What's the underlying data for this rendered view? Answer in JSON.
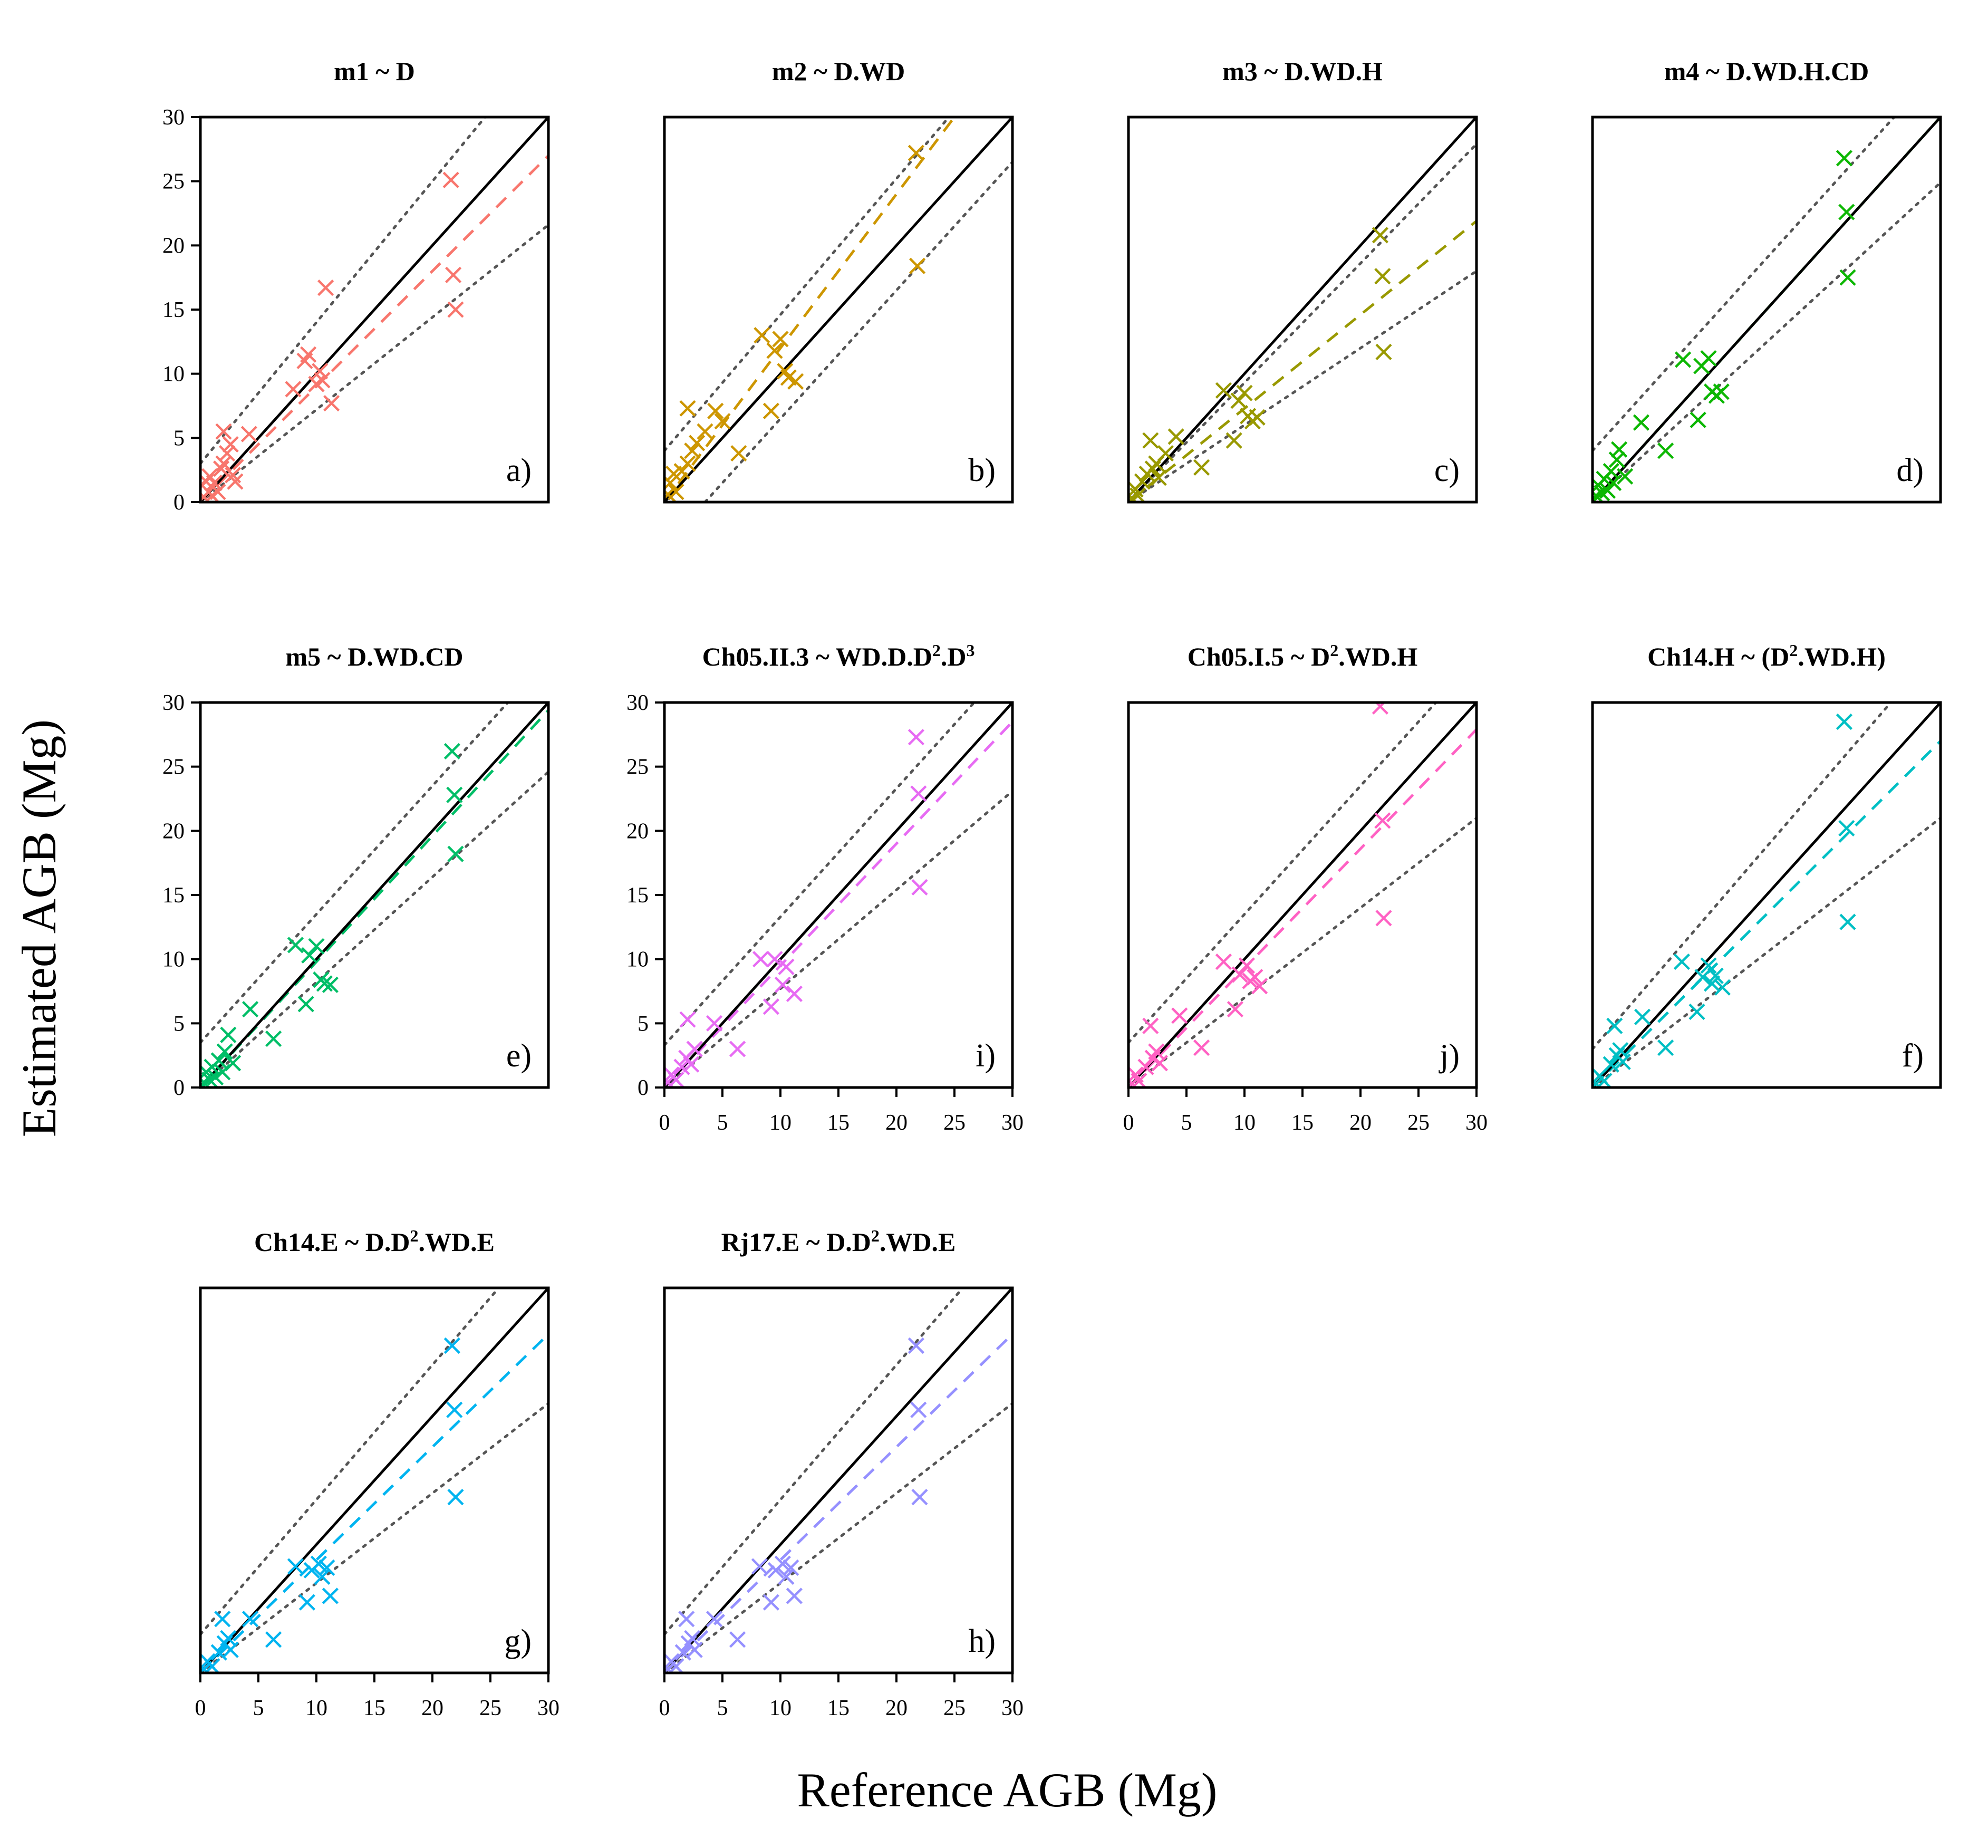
{
  "figure": {
    "ylabel": "Estimated AGB (Mg)",
    "xlabel": "Reference AGB (Mg)"
  },
  "chart_data": [
    {
      "type": "scatter",
      "id": "m1",
      "title": "m1 ~ D",
      "panel_label": "a)",
      "color": "#F8766D",
      "xlim": [
        0,
        30
      ],
      "ylim": [
        0,
        30
      ],
      "show_x_ticks": false,
      "show_y_ticks": true,
      "reference_line": {
        "slope": 1,
        "intercept": 0
      },
      "fit_line": {
        "slope": 0.9,
        "intercept": 0
      },
      "interval_lines": [
        {
          "slope": 1.1,
          "intercept": 3
        },
        {
          "slope": 0.72,
          "intercept": 0
        }
      ],
      "points": [
        [
          0.3,
          0.4
        ],
        [
          0.5,
          1.6
        ],
        [
          0.7,
          0.8
        ],
        [
          0.8,
          2.0
        ],
        [
          1.0,
          0.5
        ],
        [
          1.2,
          1.5
        ],
        [
          1.5,
          0.8
        ],
        [
          1.8,
          2.6
        ],
        [
          2.0,
          3.0
        ],
        [
          2.0,
          5.5
        ],
        [
          2.3,
          3.8
        ],
        [
          2.6,
          4.5
        ],
        [
          2.8,
          2.1
        ],
        [
          3.0,
          1.6
        ],
        [
          4.2,
          5.3
        ],
        [
          8.0,
          8.8
        ],
        [
          9.0,
          11.0
        ],
        [
          9.3,
          11.5
        ],
        [
          10.0,
          9.2
        ],
        [
          10.3,
          10.2
        ],
        [
          10.5,
          9.5
        ],
        [
          10.8,
          16.7
        ],
        [
          11.3,
          7.7
        ],
        [
          21.6,
          25.1
        ],
        [
          21.8,
          17.7
        ],
        [
          22.0,
          15.0
        ]
      ]
    },
    {
      "type": "scatter",
      "id": "m2",
      "title": "m2 ~ D.WD",
      "panel_label": "b)",
      "color": "#CD9600",
      "xlim": [
        0,
        30
      ],
      "ylim": [
        0,
        30
      ],
      "show_x_ticks": false,
      "show_y_ticks": false,
      "reference_line": {
        "slope": 1,
        "intercept": 0
      },
      "fit_line": {
        "slope": 1.2,
        "intercept": 0
      },
      "interval_lines": [
        {
          "slope": 1.06,
          "intercept": 4
        },
        {
          "slope": 1.0,
          "intercept": -3.5
        }
      ],
      "points": [
        [
          0.3,
          0.6
        ],
        [
          0.5,
          1.5
        ],
        [
          0.8,
          2.2
        ],
        [
          1.0,
          0.8
        ],
        [
          1.5,
          2.4
        ],
        [
          2.0,
          3.0
        ],
        [
          2.0,
          7.3
        ],
        [
          2.4,
          4.0
        ],
        [
          2.8,
          4.6
        ],
        [
          3.5,
          5.5
        ],
        [
          4.4,
          7.1
        ],
        [
          5.0,
          6.3
        ],
        [
          6.4,
          3.8
        ],
        [
          8.4,
          13.0
        ],
        [
          9.2,
          7.1
        ],
        [
          9.5,
          11.8
        ],
        [
          10.0,
          12.7
        ],
        [
          10.4,
          10.2
        ],
        [
          10.7,
          9.7
        ],
        [
          11.3,
          9.4
        ],
        [
          21.7,
          27.2
        ],
        [
          21.8,
          18.4
        ]
      ]
    },
    {
      "type": "scatter",
      "id": "m3",
      "title": "m3 ~ D.WD.H",
      "panel_label": "c)",
      "color": "#999900",
      "xlim": [
        0,
        30
      ],
      "ylim": [
        0,
        30
      ],
      "show_x_ticks": false,
      "show_y_ticks": false,
      "reference_line": {
        "slope": 1,
        "intercept": 0
      },
      "fit_line": {
        "slope": 0.73,
        "intercept": 0
      },
      "interval_lines": [
        {
          "slope": 0.93,
          "intercept": 0
        },
        {
          "slope": 0.6,
          "intercept": 0
        }
      ],
      "points": [
        [
          0.3,
          0.3
        ],
        [
          0.6,
          1.0
        ],
        [
          0.8,
          0.5
        ],
        [
          1.2,
          1.6
        ],
        [
          1.6,
          2.2
        ],
        [
          1.9,
          4.8
        ],
        [
          2.1,
          2.6
        ],
        [
          2.4,
          3.0
        ],
        [
          2.6,
          1.9
        ],
        [
          3.2,
          3.8
        ],
        [
          4.1,
          5.1
        ],
        [
          6.3,
          2.7
        ],
        [
          8.2,
          8.7
        ],
        [
          9.1,
          4.8
        ],
        [
          9.5,
          7.9
        ],
        [
          10.0,
          8.5
        ],
        [
          10.3,
          6.7
        ],
        [
          10.7,
          6.3
        ],
        [
          11.1,
          6.6
        ],
        [
          21.7,
          20.8
        ],
        [
          21.9,
          17.6
        ],
        [
          22.0,
          11.7
        ]
      ]
    },
    {
      "type": "scatter",
      "id": "m4",
      "title": "m4 ~ D.WD.H.CD",
      "panel_label": "d)",
      "color": "#0CB702",
      "xlim": [
        0,
        30
      ],
      "ylim": [
        0,
        30
      ],
      "show_x_ticks": false,
      "show_y_ticks": false,
      "reference_line": {
        "slope": 1,
        "intercept": 0
      },
      "fit_line": {
        "slope": 1.0,
        "intercept": 0
      },
      "interval_lines": [
        {
          "slope": 1.0,
          "intercept": 4
        },
        {
          "slope": 0.83,
          "intercept": 0
        }
      ],
      "points": [
        [
          0.3,
          0.5
        ],
        [
          0.5,
          1.3
        ],
        [
          0.8,
          0.7
        ],
        [
          1.0,
          1.8
        ],
        [
          1.3,
          0.9
        ],
        [
          1.6,
          2.4
        ],
        [
          1.8,
          1.5
        ],
        [
          2.1,
          3.3
        ],
        [
          2.3,
          4.1
        ],
        [
          2.8,
          2.0
        ],
        [
          4.2,
          6.2
        ],
        [
          6.3,
          4.0
        ],
        [
          7.8,
          11.1
        ],
        [
          9.1,
          6.4
        ],
        [
          9.4,
          10.6
        ],
        [
          10.0,
          11.2
        ],
        [
          10.3,
          8.6
        ],
        [
          10.7,
          8.3
        ],
        [
          11.1,
          8.6
        ],
        [
          21.7,
          26.8
        ],
        [
          21.9,
          22.6
        ],
        [
          22.0,
          17.5
        ]
      ]
    },
    {
      "type": "scatter",
      "id": "m5",
      "title": "m5 ~ D.WD.CD",
      "panel_label": "e)",
      "color": "#00BE67",
      "xlim": [
        0,
        30
      ],
      "ylim": [
        0,
        30
      ],
      "show_x_ticks": false,
      "show_y_ticks": true,
      "reference_line": {
        "slope": 1,
        "intercept": 0
      },
      "fit_line": {
        "slope": 0.98,
        "intercept": 0
      },
      "interval_lines": [
        {
          "slope": 1.0,
          "intercept": 3.5
        },
        {
          "slope": 0.82,
          "intercept": 0
        }
      ],
      "points": [
        [
          0.3,
          0.4
        ],
        [
          0.5,
          1.2
        ],
        [
          0.8,
          0.6
        ],
        [
          1.0,
          1.6
        ],
        [
          1.3,
          0.8
        ],
        [
          1.6,
          2.1
        ],
        [
          1.9,
          1.2
        ],
        [
          2.1,
          2.8
        ],
        [
          2.4,
          4.1
        ],
        [
          2.8,
          1.9
        ],
        [
          4.3,
          6.1
        ],
        [
          6.3,
          3.8
        ],
        [
          8.2,
          11.1
        ],
        [
          9.1,
          6.5
        ],
        [
          9.4,
          10.3
        ],
        [
          10.0,
          11.0
        ],
        [
          10.4,
          8.4
        ],
        [
          10.7,
          8.1
        ],
        [
          11.2,
          8.0
        ],
        [
          21.7,
          26.2
        ],
        [
          21.9,
          22.8
        ],
        [
          22.0,
          18.2
        ]
      ]
    },
    {
      "type": "scatter",
      "id": "Ch05.II.3",
      "title": "Ch05.II.3 ~ WD.D.D²·D³",
      "title_parts": [
        "Ch05.II.3 ~ WD.D.D",
        "2",
        ".D",
        "3"
      ],
      "panel_label": "i)",
      "color": "#E76BF3",
      "xlim": [
        0,
        30
      ],
      "ylim": [
        0,
        30
      ],
      "show_x_ticks": true,
      "show_y_ticks": true,
      "reference_line": {
        "slope": 1,
        "intercept": 0
      },
      "fit_line": {
        "slope": 0.95,
        "intercept": 0
      },
      "interval_lines": [
        {
          "slope": 1.0,
          "intercept": 3.3
        },
        {
          "slope": 0.77,
          "intercept": 0
        }
      ],
      "points": [
        [
          0.3,
          0.4
        ],
        [
          0.6,
          1.0
        ],
        [
          1.0,
          0.6
        ],
        [
          1.5,
          1.6
        ],
        [
          1.9,
          2.3
        ],
        [
          2.0,
          5.3
        ],
        [
          2.3,
          1.8
        ],
        [
          2.6,
          3.0
        ],
        [
          4.3,
          5.0
        ],
        [
          6.3,
          3.0
        ],
        [
          8.3,
          10.0
        ],
        [
          9.2,
          6.3
        ],
        [
          9.5,
          10.0
        ],
        [
          10.2,
          8.0
        ],
        [
          10.5,
          9.4
        ],
        [
          11.2,
          7.3
        ],
        [
          21.7,
          27.3
        ],
        [
          21.9,
          22.9
        ],
        [
          22.0,
          15.6
        ]
      ]
    },
    {
      "type": "scatter",
      "id": "Ch05.I.5",
      "title": "Ch05.I.5 ~ D²·WD.H",
      "title_parts": [
        "Ch05.I.5 ~ D",
        "2",
        ".WD.H"
      ],
      "panel_label": "j)",
      "color": "#FF61C3",
      "xlim": [
        0,
        30
      ],
      "ylim": [
        0,
        30
      ],
      "show_x_ticks": true,
      "show_y_ticks": false,
      "reference_line": {
        "slope": 1,
        "intercept": 0
      },
      "fit_line": {
        "slope": 0.93,
        "intercept": 0
      },
      "interval_lines": [
        {
          "slope": 1.0,
          "intercept": 3.5
        },
        {
          "slope": 0.7,
          "intercept": 0
        }
      ],
      "points": [
        [
          0.3,
          0.3
        ],
        [
          0.6,
          1.0
        ],
        [
          0.9,
          0.5
        ],
        [
          1.5,
          1.6
        ],
        [
          1.9,
          4.8
        ],
        [
          2.1,
          2.3
        ],
        [
          2.4,
          2.8
        ],
        [
          2.7,
          1.9
        ],
        [
          4.4,
          5.6
        ],
        [
          6.3,
          3.1
        ],
        [
          8.2,
          9.8
        ],
        [
          9.2,
          6.1
        ],
        [
          9.6,
          8.8
        ],
        [
          10.2,
          9.5
        ],
        [
          10.5,
          8.3
        ],
        [
          10.9,
          8.6
        ],
        [
          11.3,
          7.9
        ],
        [
          21.7,
          29.7
        ],
        [
          21.9,
          20.8
        ],
        [
          22.0,
          13.2
        ]
      ]
    },
    {
      "type": "scatter",
      "id": "Ch14.H",
      "title": "Ch14.H ~ (D²·WD.H)",
      "title_parts": [
        "Ch14.H ~ (D",
        "2",
        ".WD.H)"
      ],
      "panel_label": "f)",
      "color": "#00BFC4",
      "xlim": [
        0,
        30
      ],
      "ylim": [
        0,
        30
      ],
      "show_x_ticks": false,
      "show_y_ticks": false,
      "reference_line": {
        "slope": 1,
        "intercept": 0
      },
      "fit_line": {
        "slope": 0.9,
        "intercept": 0
      },
      "interval_lines": [
        {
          "slope": 1.05,
          "intercept": 3
        },
        {
          "slope": 0.7,
          "intercept": 0
        }
      ],
      "points": [
        [
          0.3,
          0.3
        ],
        [
          0.6,
          0.9
        ],
        [
          1.0,
          0.5
        ],
        [
          1.6,
          1.8
        ],
        [
          1.9,
          4.8
        ],
        [
          2.1,
          2.5
        ],
        [
          2.4,
          2.9
        ],
        [
          2.6,
          2.0
        ],
        [
          4.3,
          5.5
        ],
        [
          6.3,
          3.1
        ],
        [
          7.7,
          9.8
        ],
        [
          9.0,
          5.9
        ],
        [
          9.5,
          8.6
        ],
        [
          10.0,
          9.5
        ],
        [
          10.3,
          8.1
        ],
        [
          10.6,
          8.7
        ],
        [
          11.2,
          7.8
        ],
        [
          21.7,
          28.5
        ],
        [
          21.9,
          20.2
        ],
        [
          22.0,
          12.9
        ]
      ]
    },
    {
      "type": "scatter",
      "id": "Ch14.E",
      "title": "Ch14.E ~ D.D²·WD.E",
      "title_parts": [
        "Ch14.E ~ D.D",
        "2",
        ".WD.E"
      ],
      "panel_label": "g)",
      "color": "#00B4F0",
      "xlim": [
        0,
        30
      ],
      "ylim": [
        0,
        30
      ],
      "show_x_ticks": true,
      "show_y_ticks": false,
      "reference_line": {
        "slope": 1,
        "intercept": 0
      },
      "fit_line": {
        "slope": 0.88,
        "intercept": 0
      },
      "interval_lines": [
        {
          "slope": 1.05,
          "intercept": 3
        },
        {
          "slope": 0.7,
          "intercept": 0
        }
      ],
      "points": [
        [
          0.3,
          0.3
        ],
        [
          0.6,
          0.9
        ],
        [
          1.0,
          0.5
        ],
        [
          1.6,
          1.6
        ],
        [
          1.9,
          4.2
        ],
        [
          2.1,
          2.3
        ],
        [
          2.4,
          2.7
        ],
        [
          2.6,
          1.8
        ],
        [
          4.3,
          4.2
        ],
        [
          6.3,
          2.6
        ],
        [
          8.2,
          8.3
        ],
        [
          9.2,
          5.5
        ],
        [
          9.6,
          8.0
        ],
        [
          10.2,
          8.5
        ],
        [
          10.5,
          7.5
        ],
        [
          10.9,
          8.2
        ],
        [
          11.2,
          6.0
        ],
        [
          21.7,
          25.5
        ],
        [
          21.9,
          20.5
        ],
        [
          22.0,
          13.7
        ]
      ]
    },
    {
      "type": "scatter",
      "id": "Rj17.E",
      "title": "Rj17.E ~ D.D²·WD.E",
      "title_parts": [
        "Rj17.E ~ D.D",
        "2",
        ".WD.E"
      ],
      "panel_label": "h)",
      "color": "#9590FF",
      "xlim": [
        0,
        30
      ],
      "ylim": [
        0,
        30
      ],
      "show_x_ticks": true,
      "show_y_ticks": false,
      "reference_line": {
        "slope": 1,
        "intercept": 0
      },
      "fit_line": {
        "slope": 0.88,
        "intercept": 0
      },
      "interval_lines": [
        {
          "slope": 1.05,
          "intercept": 3
        },
        {
          "slope": 0.7,
          "intercept": 0
        }
      ],
      "points": [
        [
          0.3,
          0.3
        ],
        [
          0.6,
          0.9
        ],
        [
          1.0,
          0.5
        ],
        [
          1.6,
          1.6
        ],
        [
          1.9,
          4.2
        ],
        [
          2.1,
          2.3
        ],
        [
          2.4,
          2.7
        ],
        [
          2.6,
          1.8
        ],
        [
          4.3,
          4.2
        ],
        [
          6.3,
          2.6
        ],
        [
          8.2,
          8.3
        ],
        [
          9.2,
          5.5
        ],
        [
          9.6,
          8.0
        ],
        [
          10.2,
          8.5
        ],
        [
          10.5,
          7.5
        ],
        [
          10.9,
          8.2
        ],
        [
          11.2,
          6.0
        ],
        [
          21.7,
          25.5
        ],
        [
          21.9,
          20.5
        ],
        [
          22.0,
          13.7
        ]
      ]
    }
  ]
}
